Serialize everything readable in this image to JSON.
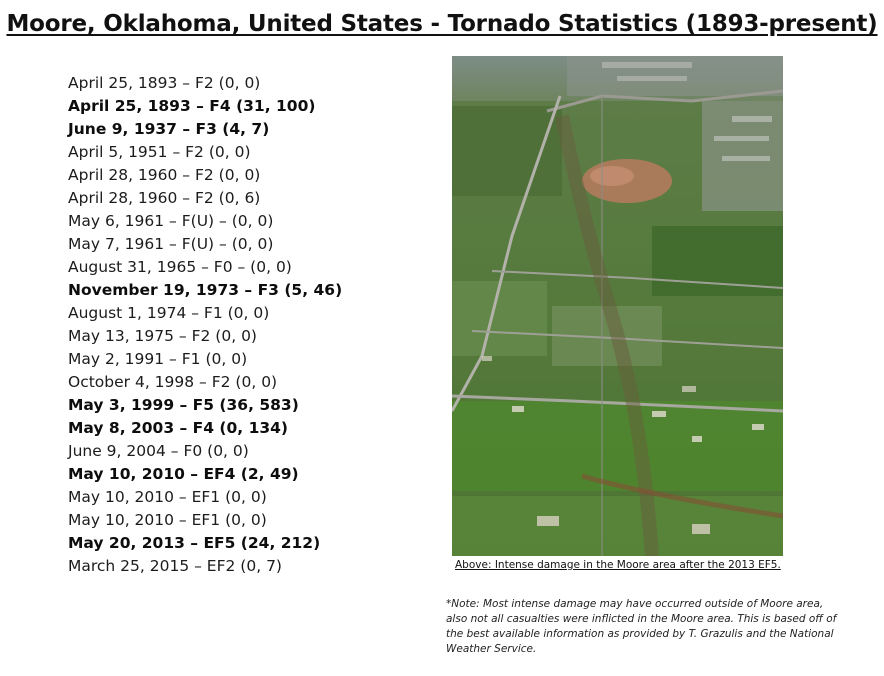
{
  "title": "Moore, Oklahoma, United States - Tornado Statistics (1893-present)",
  "events": [
    {
      "text": "April 25, 1893 – F2 (0, 0)",
      "bold": false
    },
    {
      "text": "April 25, 1893 – F4 (31, 100)",
      "bold": true
    },
    {
      "text": "June 9, 1937 – F3 (4, 7)",
      "bold": true
    },
    {
      "text": "April 5, 1951 – F2 (0, 0)",
      "bold": false
    },
    {
      "text": "April 28, 1960 – F2 (0, 0)",
      "bold": false
    },
    {
      "text": "April 28, 1960 – F2 (0, 6)",
      "bold": false
    },
    {
      "text": "May 6, 1961 – F(U) – (0, 0)",
      "bold": false
    },
    {
      "text": "May 7, 1961 – F(U) – (0, 0)",
      "bold": false
    },
    {
      "text": "August 31, 1965 – F0 – (0, 0)",
      "bold": false
    },
    {
      "text": "November 19, 1973 – F3 (5, 46)",
      "bold": true
    },
    {
      "text": "August 1, 1974 – F1 (0, 0)",
      "bold": false
    },
    {
      "text": "May 13, 1975 – F2 (0, 0)",
      "bold": false
    },
    {
      "text": "May 2, 1991 – F1 (0, 0)",
      "bold": false
    },
    {
      "text": "October 4, 1998 – F2 (0, 0)",
      "bold": false
    },
    {
      "text": "May 3, 1999 – F5 (36, 583)",
      "bold": true
    },
    {
      "text": "May 8, 2003 – F4 (0, 134)",
      "bold": true
    },
    {
      "text": "June 9, 2004 – F0 (0, 0)",
      "bold": false
    },
    {
      "text": "May 10, 2010 – EF4 (2, 49)",
      "bold": true
    },
    {
      "text": "May 10, 2010 – EF1 (0, 0)",
      "bold": false
    },
    {
      "text": "May 10, 2010 – EF1 (0, 0)",
      "bold": false
    },
    {
      "text": "May 20, 2013 – EF5 (24, 212)",
      "bold": true
    },
    {
      "text": "March 25, 2015 – EF2 (0, 7)",
      "bold": false
    }
  ],
  "photo": {
    "caption": "Above: Intense damage in the Moore area after the 2013 EF5."
  },
  "note": "*Note: Most intense damage may have occurred outside of Moore area, also not all casualties were inflicted in the Moore area. This is based off of the best available information as provided by T. Grazulis and the National Weather Service."
}
